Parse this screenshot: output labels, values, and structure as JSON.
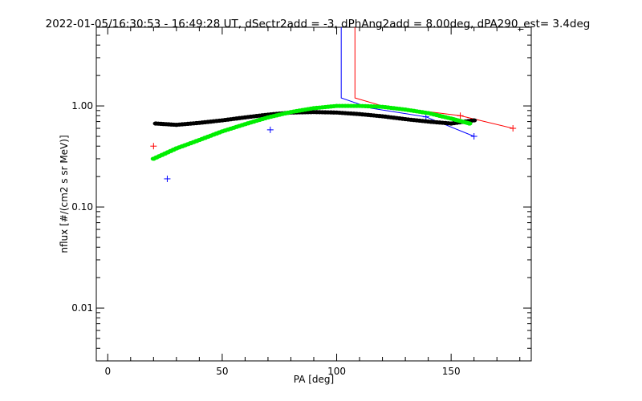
{
  "chart_data": {
    "type": "scatter",
    "title": "2022-01-05/16:30:53 - 16:49:28 UT, dSectr2add = -3, dPhAng2add = 8.00deg, dPA290_est=   3.4deg",
    "xlabel": "PA [deg]",
    "ylabel": "nflux [#/(cm2 s sr MeV)]",
    "xlim": [
      -5,
      185
    ],
    "ylim": [
      0.003,
      6
    ],
    "y_scale": "log",
    "grid": false,
    "x_ticks": [
      {
        "value": 0,
        "label": "0"
      },
      {
        "value": 50,
        "label": "50"
      },
      {
        "value": 100,
        "label": "100"
      },
      {
        "value": 150,
        "label": "150"
      }
    ],
    "y_ticks": [
      {
        "value": 0.01,
        "label": "0.01"
      },
      {
        "value": 0.1,
        "label": "0.10"
      },
      {
        "value": 1,
        "label": "1.00"
      }
    ],
    "series": [
      {
        "color": "#0000ff",
        "style": "plus-markers",
        "x": [
          26,
          71,
          139,
          160
        ],
        "y": [
          0.19,
          0.58,
          0.78,
          0.5
        ]
      },
      {
        "color": "#ff0000",
        "style": "plus-markers",
        "x": [
          20,
          154,
          177
        ],
        "y": [
          0.4,
          0.8,
          0.6
        ]
      },
      {
        "color": "#0000ff",
        "style": "line",
        "x": [
          102,
          102,
          115,
          139,
          160
        ],
        "y": [
          6,
          1.2,
          0.95,
          0.78,
          0.5
        ]
      },
      {
        "color": "#ff0000",
        "style": "line",
        "x": [
          108,
          108,
          120,
          154,
          177
        ],
        "y": [
          6,
          1.2,
          1.0,
          0.8,
          0.6
        ]
      },
      {
        "color": "#000000",
        "style": "thick-dotted",
        "x": [
          21,
          30,
          40,
          50,
          60,
          70,
          80,
          90,
          100,
          110,
          120,
          130,
          140,
          150,
          160
        ],
        "y": [
          0.67,
          0.65,
          0.68,
          0.72,
          0.77,
          0.82,
          0.86,
          0.87,
          0.86,
          0.83,
          0.79,
          0.74,
          0.7,
          0.67,
          0.72
        ]
      },
      {
        "color": "#00ee00",
        "style": "thick-dotted",
        "x": [
          20,
          30,
          40,
          50,
          60,
          70,
          80,
          90,
          100,
          110,
          120,
          130,
          140,
          150,
          158
        ],
        "y": [
          0.3,
          0.38,
          0.46,
          0.56,
          0.66,
          0.77,
          0.87,
          0.95,
          1.0,
          1.0,
          0.98,
          0.92,
          0.85,
          0.75,
          0.67
        ]
      }
    ]
  }
}
